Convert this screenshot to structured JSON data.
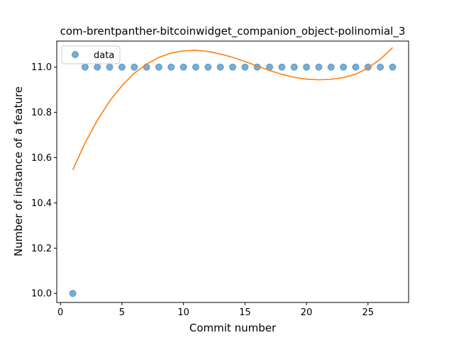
{
  "chart_data": {
    "type": "scatter",
    "title": "com-brentpanther-bitcoinwidget_companion_object-polinomial_3",
    "xlabel": "Commit number",
    "ylabel": "Number of instance of a feature",
    "xlim": [
      -0.3,
      28.3
    ],
    "ylim": [
      9.96,
      11.115
    ],
    "x_ticks": [
      0,
      5,
      10,
      15,
      20,
      25
    ],
    "y_ticks": [
      10.0,
      10.2,
      10.4,
      10.6,
      10.8,
      11.0
    ],
    "x_tick_labels": [
      "0",
      "5",
      "10",
      "15",
      "20",
      "25"
    ],
    "y_tick_labels": [
      "10.0",
      "10.2",
      "10.4",
      "10.6",
      "10.8",
      "11.0"
    ],
    "legend": {
      "position": "upper-left",
      "entries": [
        "data"
      ]
    },
    "series": [
      {
        "name": "data",
        "kind": "scatter",
        "color": "#1f77b4",
        "x": [
          1,
          2,
          3,
          4,
          5,
          6,
          7,
          8,
          9,
          10,
          11,
          12,
          13,
          14,
          15,
          16,
          17,
          18,
          19,
          20,
          21,
          22,
          23,
          24,
          25,
          26,
          27
        ],
        "y": [
          10,
          11,
          11,
          11,
          11,
          11,
          11,
          11,
          11,
          11,
          11,
          11,
          11,
          11,
          11,
          11,
          11,
          11,
          11,
          11,
          11,
          11,
          11,
          11,
          11,
          11,
          11
        ]
      },
      {
        "kind": "line",
        "color": "#ff7f0e",
        "x": [
          1,
          2,
          3,
          4,
          5,
          6,
          7,
          8,
          9,
          10,
          11,
          12,
          13,
          14,
          15,
          16,
          17,
          18,
          19,
          20,
          21,
          22,
          23,
          24,
          25,
          26,
          27
        ],
        "y": [
          10.545,
          10.665,
          10.765,
          10.85,
          10.918,
          10.973,
          11.013,
          11.043,
          11.062,
          11.072,
          11.074,
          11.069,
          11.058,
          11.043,
          11.025,
          11.005,
          10.985,
          10.968,
          10.955,
          10.947,
          10.944,
          10.946,
          10.954,
          10.969,
          10.996,
          11.035,
          11.086
        ]
      }
    ]
  }
}
